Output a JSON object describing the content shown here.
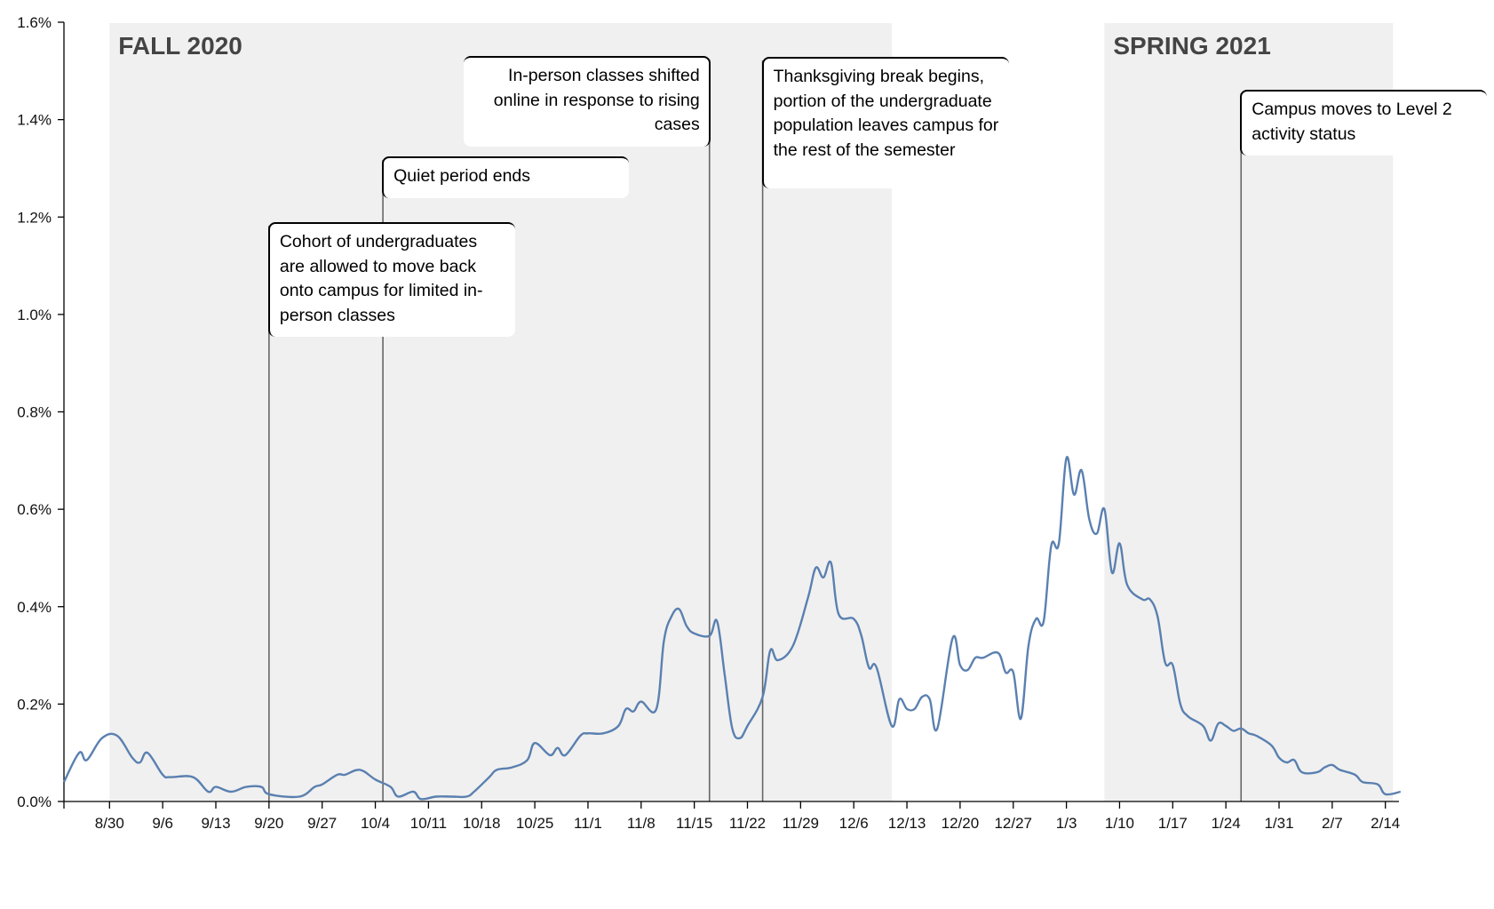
{
  "chart_data": {
    "type": "line",
    "title": "",
    "xlabel": "",
    "ylabel": "",
    "ylim": [
      0,
      1.6
    ],
    "y_ticks": [
      "0.0%",
      "0.2%",
      "0.4%",
      "0.6%",
      "0.8%",
      "1.0%",
      "1.2%",
      "1.4%",
      "1.6%"
    ],
    "x_ticks": [
      "8/30",
      "9/6",
      "9/13",
      "9/20",
      "9/27",
      "10/4",
      "10/11",
      "10/18",
      "10/25",
      "11/1",
      "11/8",
      "11/15",
      "11/22",
      "11/29",
      "12/6",
      "12/13",
      "12/20",
      "12/27",
      "1/3",
      "1/10",
      "1/17",
      "1/24",
      "1/31",
      "2/7",
      "2/14"
    ],
    "grid": false,
    "shaded_periods": [
      {
        "label": "FALL 2020",
        "start": "8/30",
        "end": "12/11"
      },
      {
        "label": "SPRING 2021",
        "start": "1/8",
        "end": "2/15"
      }
    ],
    "annotations": [
      {
        "date": "9/20",
        "text": "Cohort of undergraduates are allowed to move back onto campus for limited in-person classes"
      },
      {
        "date": "10/5",
        "text": "Quiet period ends"
      },
      {
        "date": "11/17",
        "text": "In-person classes shifted online in response to rising cases"
      },
      {
        "date": "11/24",
        "text": "Thanksgiving break begins, portion of the undergraduate population leaves campus for the rest of the semester"
      },
      {
        "date": "1/26",
        "text": "Campus moves to Level 2 activity status"
      }
    ],
    "series": [
      {
        "values": [
          [
            "8/24",
            0.04
          ],
          [
            "8/26",
            0.1
          ],
          [
            "8/27",
            0.085
          ],
          [
            "8/29",
            0.13
          ],
          [
            "8/31",
            0.135
          ],
          [
            "9/2",
            0.09
          ],
          [
            "9/3",
            0.08
          ],
          [
            "9/4",
            0.1
          ],
          [
            "9/6",
            0.055
          ],
          [
            "9/7",
            0.05
          ],
          [
            "9/10",
            0.05
          ],
          [
            "9/12",
            0.02
          ],
          [
            "9/13",
            0.03
          ],
          [
            "9/15",
            0.02
          ],
          [
            "9/17",
            0.03
          ],
          [
            "9/19",
            0.03
          ],
          [
            "9/20",
            0.015
          ],
          [
            "9/24",
            0.01
          ],
          [
            "9/26",
            0.03
          ],
          [
            "9/27",
            0.035
          ],
          [
            "9/29",
            0.055
          ],
          [
            "9/30",
            0.055
          ],
          [
            "10/2",
            0.065
          ],
          [
            "10/4",
            0.045
          ],
          [
            "10/6",
            0.03
          ],
          [
            "10/7",
            0.01
          ],
          [
            "10/9",
            0.02
          ],
          [
            "10/10",
            0.005
          ],
          [
            "10/12",
            0.01
          ],
          [
            "10/14",
            0.01
          ],
          [
            "10/16",
            0.01
          ],
          [
            "10/17",
            0.02
          ],
          [
            "10/19",
            0.05
          ],
          [
            "10/20",
            0.065
          ],
          [
            "10/22",
            0.07
          ],
          [
            "10/24",
            0.085
          ],
          [
            "10/25",
            0.12
          ],
          [
            "10/27",
            0.095
          ],
          [
            "10/28",
            0.11
          ],
          [
            "10/29",
            0.095
          ],
          [
            "10/31",
            0.135
          ],
          [
            "11/1",
            0.14
          ],
          [
            "11/3",
            0.14
          ],
          [
            "11/5",
            0.155
          ],
          [
            "11/6",
            0.19
          ],
          [
            "11/7",
            0.185
          ],
          [
            "11/8",
            0.205
          ],
          [
            "11/10",
            0.19
          ],
          [
            "11/11",
            0.33
          ],
          [
            "11/12",
            0.38
          ],
          [
            "11/13",
            0.395
          ],
          [
            "11/14",
            0.36
          ],
          [
            "11/15",
            0.345
          ],
          [
            "11/17",
            0.34
          ],
          [
            "11/18",
            0.37
          ],
          [
            "11/19",
            0.26
          ],
          [
            "11/20",
            0.15
          ],
          [
            "11/21",
            0.13
          ],
          [
            "11/22",
            0.155
          ],
          [
            "11/24",
            0.215
          ],
          [
            "11/25",
            0.31
          ],
          [
            "11/26",
            0.29
          ],
          [
            "11/28",
            0.32
          ],
          [
            "11/30",
            0.42
          ],
          [
            "12/1",
            0.48
          ],
          [
            "12/2",
            0.46
          ],
          [
            "12/3",
            0.49
          ],
          [
            "12/4",
            0.385
          ],
          [
            "12/6",
            0.375
          ],
          [
            "12/7",
            0.34
          ],
          [
            "12/8",
            0.275
          ],
          [
            "12/9",
            0.275
          ],
          [
            "12/11",
            0.155
          ],
          [
            "12/12",
            0.21
          ],
          [
            "12/13",
            0.19
          ],
          [
            "12/14",
            0.19
          ],
          [
            "12/15",
            0.215
          ],
          [
            "12/16",
            0.21
          ],
          [
            "12/17",
            0.15
          ],
          [
            "12/19",
            0.335
          ],
          [
            "12/20",
            0.28
          ],
          [
            "12/21",
            0.27
          ],
          [
            "12/22",
            0.295
          ],
          [
            "12/23",
            0.295
          ],
          [
            "12/25",
            0.305
          ],
          [
            "12/26",
            0.265
          ],
          [
            "12/27",
            0.265
          ],
          [
            "12/28",
            0.17
          ],
          [
            "12/29",
            0.32
          ],
          [
            "12/30",
            0.375
          ],
          [
            "12/31",
            0.37
          ],
          [
            "1/1",
            0.525
          ],
          [
            "1/2",
            0.53
          ],
          [
            "1/3",
            0.705
          ],
          [
            "1/4",
            0.63
          ],
          [
            "1/5",
            0.68
          ],
          [
            "1/6",
            0.58
          ],
          [
            "1/7",
            0.55
          ],
          [
            "1/8",
            0.6
          ],
          [
            "1/9",
            0.47
          ],
          [
            "1/10",
            0.53
          ],
          [
            "1/11",
            0.445
          ],
          [
            "1/13",
            0.415
          ],
          [
            "1/14",
            0.415
          ],
          [
            "1/15",
            0.38
          ],
          [
            "1/16",
            0.285
          ],
          [
            "1/17",
            0.28
          ],
          [
            "1/18",
            0.2
          ],
          [
            "1/19",
            0.175
          ],
          [
            "1/21",
            0.155
          ],
          [
            "1/22",
            0.125
          ],
          [
            "1/23",
            0.16
          ],
          [
            "1/24",
            0.155
          ],
          [
            "1/25",
            0.145
          ],
          [
            "1/26",
            0.15
          ],
          [
            "1/27",
            0.14
          ],
          [
            "1/28",
            0.135
          ],
          [
            "1/30",
            0.115
          ],
          [
            "1/31",
            0.09
          ],
          [
            "2/1",
            0.08
          ],
          [
            "2/2",
            0.085
          ],
          [
            "2/3",
            0.06
          ],
          [
            "2/5",
            0.06
          ],
          [
            "2/6",
            0.07
          ],
          [
            "2/7",
            0.075
          ],
          [
            "2/8",
            0.065
          ],
          [
            "2/10",
            0.055
          ],
          [
            "2/11",
            0.04
          ],
          [
            "2/13",
            0.035
          ],
          [
            "2/14",
            0.015
          ],
          [
            "2/16",
            0.02
          ]
        ]
      }
    ]
  },
  "colors": {
    "line": "#5a80b0",
    "shade": "#f0f0f0",
    "axis": "#000000",
    "marker": "#666666",
    "season_label": "#444444"
  }
}
